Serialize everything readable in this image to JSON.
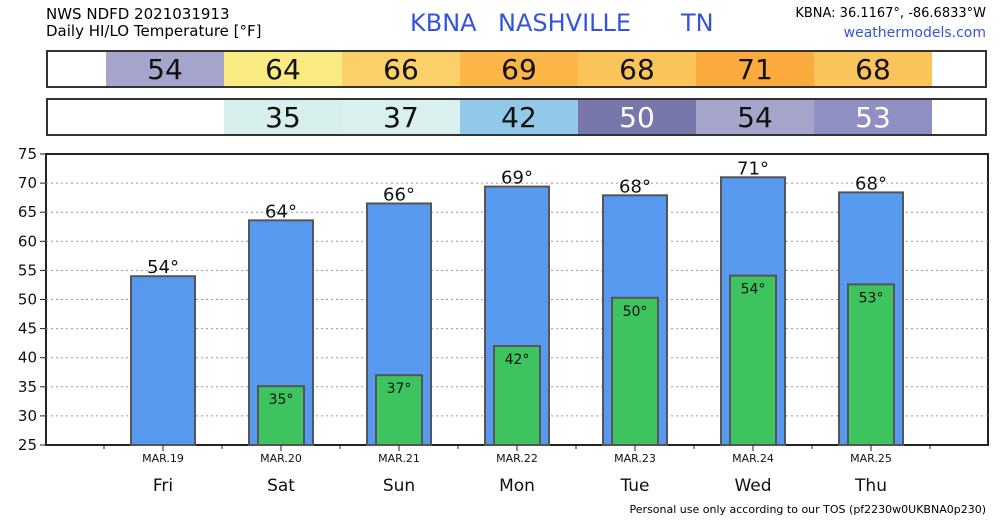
{
  "header": {
    "line1": "NWS NDFD 2021031913",
    "line2": "Daily HI/LO Temperature [°F]",
    "station_id": "KBNA",
    "city": "NASHVILLE",
    "state": "TN",
    "coords": "KBNA: 36.1167°, -86.6833°W",
    "site": "weathermodels.com"
  },
  "hi_strip": [
    {
      "text": "54",
      "color": "#a5a5cc",
      "text_color": "#111111"
    },
    {
      "text": "64",
      "color": "#faea82",
      "text_color": "#111111"
    },
    {
      "text": "66",
      "color": "#fbd068",
      "text_color": "#111111"
    },
    {
      "text": "69",
      "color": "#fbb647",
      "text_color": "#111111"
    },
    {
      "text": "68",
      "color": "#fbc45a",
      "text_color": "#111111"
    },
    {
      "text": "71",
      "color": "#fbab3e",
      "text_color": "#111111"
    },
    {
      "text": "68",
      "color": "#fbc45a",
      "text_color": "#111111"
    }
  ],
  "lo_strip": [
    {
      "text": "",
      "color": "#ffffff",
      "text_color": "#111111"
    },
    {
      "text": "35",
      "color": "#d6eeec",
      "text_color": "#111111"
    },
    {
      "text": "37",
      "color": "#d9f0ee",
      "text_color": "#111111"
    },
    {
      "text": "42",
      "color": "#93c9e8",
      "text_color": "#111111"
    },
    {
      "text": "50",
      "color": "#7777ab",
      "text_color": "#ffffff"
    },
    {
      "text": "54",
      "color": "#a5a5cc",
      "text_color": "#111111"
    },
    {
      "text": "53",
      "color": "#8f8fc4",
      "text_color": "#ffffff"
    }
  ],
  "chart_data": {
    "type": "bar",
    "categories": [
      "Fri",
      "Sat",
      "Sun",
      "Mon",
      "Tue",
      "Wed",
      "Thu"
    ],
    "dates": [
      "MAR.19",
      "MAR.20",
      "MAR.21",
      "MAR.22",
      "MAR.23",
      "MAR.24",
      "MAR.25"
    ],
    "series": [
      {
        "values": [
          54,
          63.6,
          66.5,
          69.4,
          67.9,
          71,
          68.4
        ],
        "labels": [
          "54°",
          "64°",
          "66°",
          "69°",
          "68°",
          "71°",
          "68°"
        ]
      },
      {
        "values": [
          null,
          35.1,
          37,
          42,
          50.3,
          54.1,
          52.6
        ],
        "labels": [
          "",
          "35°",
          "37°",
          "42°",
          "50°",
          "54°",
          "53°"
        ]
      }
    ],
    "ylim": [
      25,
      75
    ],
    "yticks": [
      25,
      30,
      35,
      40,
      45,
      50,
      55,
      60,
      65,
      70,
      75
    ],
    "grid": true,
    "colors": {
      "hi": "#5899f0",
      "lo": "#3dc45e",
      "outline": "#555555"
    }
  },
  "footer": "Personal use only according to our TOS (pf2230w0UKBNA0p230)"
}
